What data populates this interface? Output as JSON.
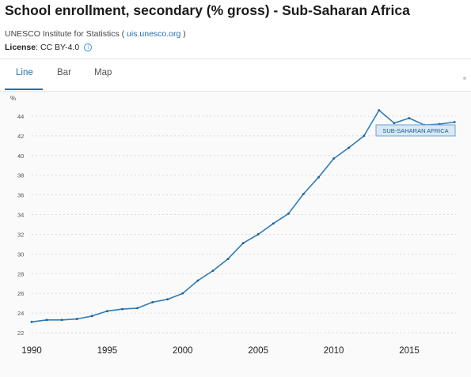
{
  "header": {
    "title": "School enrollment, secondary (% gross) - Sub-Saharan Africa",
    "source_text": "UNESCO Institute for Statistics (",
    "source_link": "uis.unesco.org",
    "source_close": ")",
    "license_label": "License",
    "license_value": ": CC BY-4.0",
    "info_icon": "info-icon"
  },
  "tabs": [
    {
      "label": "Line",
      "active": true
    },
    {
      "label": "Bar",
      "active": false
    },
    {
      "label": "Map",
      "active": false
    }
  ],
  "colors": {
    "line": "#2e7cb8",
    "accent": "#1f6fb2",
    "grid": "#d9d9d9",
    "tooltip_bg": "#d9e8f5",
    "tooltip_border": "#6aa3d3"
  },
  "chart_data": {
    "type": "line",
    "ylabel": "%",
    "xlabel": "",
    "ylim": [
      22,
      46
    ],
    "xlim": [
      1990,
      2018
    ],
    "yticks": [
      22,
      24,
      26,
      28,
      30,
      32,
      34,
      36,
      38,
      40,
      42,
      44
    ],
    "xticks": [
      1990,
      1995,
      2000,
      2005,
      2010,
      2015
    ],
    "grid": "horizontal dashed",
    "series": [
      {
        "name": "SUB-SAHARAN AFRICA",
        "x": [
          1990,
          1991,
          1992,
          1993,
          1994,
          1995,
          1996,
          1997,
          1998,
          1999,
          2000,
          2001,
          2002,
          2003,
          2004,
          2005,
          2006,
          2007,
          2008,
          2009,
          2010,
          2011,
          2012,
          2013,
          2014,
          2015,
          2016,
          2017,
          2018
        ],
        "values": [
          23.1,
          23.3,
          23.3,
          23.4,
          23.7,
          24.2,
          24.4,
          24.5,
          25.1,
          25.4,
          26.0,
          27.3,
          28.3,
          29.5,
          31.1,
          32.0,
          33.1,
          34.1,
          36.1,
          37.8,
          39.7,
          40.8,
          42.0,
          44.6,
          43.3,
          43.8,
          43.1,
          43.2,
          43.4
        ]
      }
    ],
    "series_label": "SUB-SAHARAN AFRICA"
  }
}
